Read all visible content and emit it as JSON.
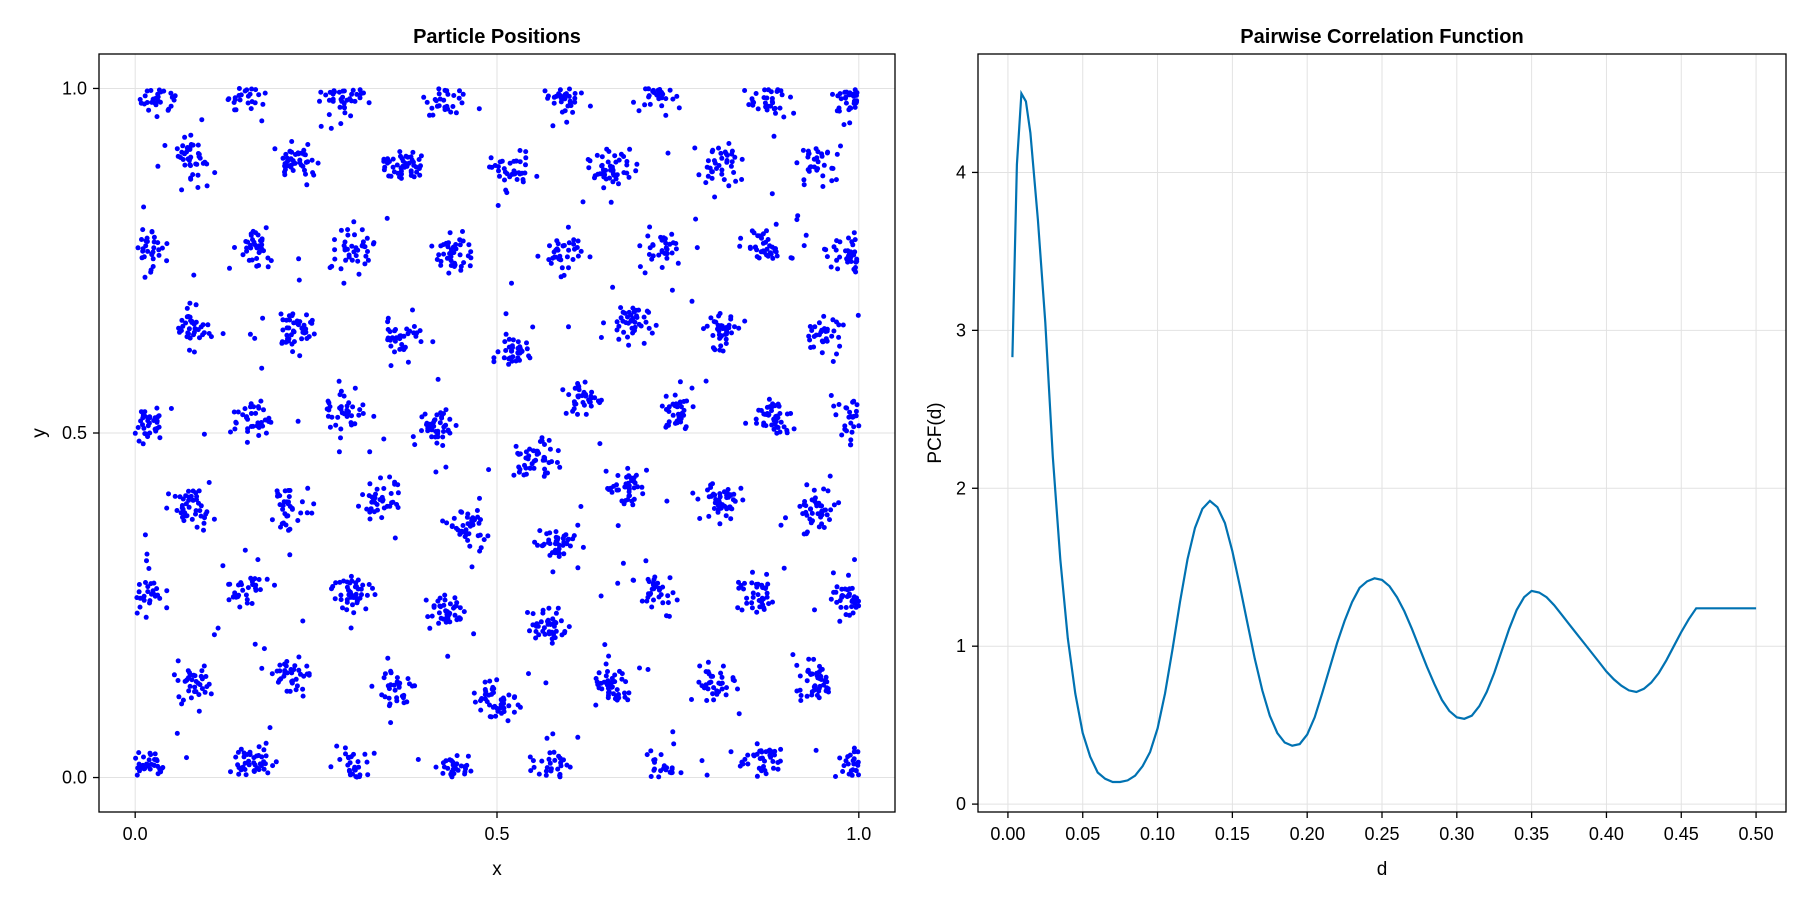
{
  "chart_data": [
    {
      "type": "scatter",
      "title": "Particle Positions",
      "xlabel": "x",
      "ylabel": "y",
      "xlim": [
        -0.05,
        1.05
      ],
      "ylim": [
        -0.05,
        1.05
      ],
      "xticks": [
        0.0,
        0.5,
        1.0
      ],
      "yticks": [
        0.0,
        0.5,
        1.0
      ],
      "xtick_labels": [
        "0.0",
        "0.5",
        "1.0"
      ],
      "ytick_labels": [
        "0.0",
        "0.5",
        "1.0"
      ],
      "grid": true,
      "legend": "none",
      "marker_color": "#0000ff",
      "cluster_centers": [
        [
          0.02,
          0.02
        ],
        [
          0.16,
          0.02
        ],
        [
          0.3,
          0.01
        ],
        [
          0.44,
          0.01
        ],
        [
          0.58,
          0.01
        ],
        [
          0.73,
          0.01
        ],
        [
          0.87,
          0.02
        ],
        [
          0.99,
          0.01
        ],
        [
          0.03,
          0.99
        ],
        [
          0.15,
          0.99
        ],
        [
          0.29,
          0.99
        ],
        [
          0.43,
          0.99
        ],
        [
          0.59,
          0.99
        ],
        [
          0.72,
          0.99
        ],
        [
          0.87,
          0.99
        ],
        [
          0.99,
          0.99
        ],
        [
          0.08,
          0.9
        ],
        [
          0.22,
          0.89
        ],
        [
          0.37,
          0.89
        ],
        [
          0.52,
          0.88
        ],
        [
          0.66,
          0.88
        ],
        [
          0.81,
          0.89
        ],
        [
          0.94,
          0.89
        ],
        [
          0.02,
          0.77
        ],
        [
          0.16,
          0.77
        ],
        [
          0.3,
          0.77
        ],
        [
          0.44,
          0.76
        ],
        [
          0.59,
          0.76
        ],
        [
          0.73,
          0.77
        ],
        [
          0.87,
          0.77
        ],
        [
          0.99,
          0.76
        ],
        [
          0.08,
          0.65
        ],
        [
          0.22,
          0.65
        ],
        [
          0.37,
          0.64
        ],
        [
          0.52,
          0.62
        ],
        [
          0.68,
          0.66
        ],
        [
          0.81,
          0.65
        ],
        [
          0.95,
          0.64
        ],
        [
          0.02,
          0.51
        ],
        [
          0.16,
          0.52
        ],
        [
          0.29,
          0.53
        ],
        [
          0.42,
          0.51
        ],
        [
          0.55,
          0.46
        ],
        [
          0.62,
          0.55
        ],
        [
          0.75,
          0.53
        ],
        [
          0.88,
          0.52
        ],
        [
          0.99,
          0.52
        ],
        [
          0.08,
          0.39
        ],
        [
          0.21,
          0.39
        ],
        [
          0.34,
          0.4
        ],
        [
          0.46,
          0.36
        ],
        [
          0.58,
          0.34
        ],
        [
          0.68,
          0.42
        ],
        [
          0.81,
          0.4
        ],
        [
          0.94,
          0.39
        ],
        [
          0.01,
          0.27
        ],
        [
          0.15,
          0.27
        ],
        [
          0.3,
          0.27
        ],
        [
          0.43,
          0.24
        ],
        [
          0.57,
          0.22
        ],
        [
          0.72,
          0.27
        ],
        [
          0.86,
          0.26
        ],
        [
          0.99,
          0.26
        ],
        [
          0.08,
          0.14
        ],
        [
          0.22,
          0.15
        ],
        [
          0.36,
          0.13
        ],
        [
          0.5,
          0.11
        ],
        [
          0.66,
          0.13
        ],
        [
          0.8,
          0.14
        ],
        [
          0.94,
          0.14
        ]
      ]
    },
    {
      "type": "line",
      "title": "Pairwise Correlation Function",
      "xlabel": "d",
      "ylabel": "PCF(d)",
      "xlim": [
        -0.02,
        0.52
      ],
      "ylim": [
        -0.05,
        4.75
      ],
      "xticks": [
        0.0,
        0.05,
        0.1,
        0.15,
        0.2,
        0.25,
        0.3,
        0.35,
        0.4,
        0.45,
        0.5
      ],
      "xtick_labels": [
        "0.00",
        "0.05",
        "0.10",
        "0.15",
        "0.20",
        "0.25",
        "0.30",
        "0.35",
        "0.40",
        "0.45",
        "0.50"
      ],
      "yticks": [
        0,
        1,
        2,
        3,
        4
      ],
      "ytick_labels": [
        "0",
        "1",
        "2",
        "3",
        "4"
      ],
      "grid": true,
      "legend": "none",
      "line_color": "#0072b2",
      "x": [
        0.003,
        0.006,
        0.009,
        0.012,
        0.015,
        0.02,
        0.025,
        0.03,
        0.035,
        0.04,
        0.045,
        0.05,
        0.055,
        0.06,
        0.065,
        0.07,
        0.075,
        0.08,
        0.085,
        0.09,
        0.095,
        0.1,
        0.105,
        0.11,
        0.115,
        0.12,
        0.125,
        0.13,
        0.135,
        0.14,
        0.145,
        0.15,
        0.155,
        0.16,
        0.165,
        0.17,
        0.175,
        0.18,
        0.185,
        0.19,
        0.195,
        0.2,
        0.205,
        0.21,
        0.215,
        0.22,
        0.225,
        0.23,
        0.235,
        0.24,
        0.245,
        0.25,
        0.255,
        0.26,
        0.265,
        0.27,
        0.275,
        0.28,
        0.285,
        0.29,
        0.295,
        0.3,
        0.305,
        0.31,
        0.315,
        0.32,
        0.325,
        0.33,
        0.335,
        0.34,
        0.345,
        0.35,
        0.355,
        0.36,
        0.365,
        0.37,
        0.375,
        0.38,
        0.385,
        0.39,
        0.395,
        0.4,
        0.405,
        0.41,
        0.415,
        0.42,
        0.425,
        0.43,
        0.435,
        0.44,
        0.445,
        0.45,
        0.455,
        0.46,
        0.465,
        0.47,
        0.475,
        0.48,
        0.485,
        0.49,
        0.495,
        0.5
      ],
      "values": [
        2.83,
        4.05,
        4.5,
        4.45,
        4.25,
        3.7,
        3.05,
        2.2,
        1.55,
        1.05,
        0.7,
        0.45,
        0.3,
        0.2,
        0.16,
        0.14,
        0.14,
        0.15,
        0.18,
        0.24,
        0.33,
        0.48,
        0.7,
        0.98,
        1.28,
        1.55,
        1.75,
        1.87,
        1.92,
        1.88,
        1.78,
        1.6,
        1.38,
        1.15,
        0.92,
        0.72,
        0.56,
        0.45,
        0.39,
        0.37,
        0.38,
        0.44,
        0.55,
        0.7,
        0.86,
        1.02,
        1.16,
        1.28,
        1.37,
        1.41,
        1.43,
        1.42,
        1.38,
        1.31,
        1.22,
        1.11,
        0.99,
        0.87,
        0.76,
        0.66,
        0.59,
        0.55,
        0.54,
        0.56,
        0.62,
        0.71,
        0.83,
        0.97,
        1.11,
        1.23,
        1.31,
        1.35,
        1.34,
        1.31,
        1.26,
        1.2,
        1.14,
        1.08,
        1.02,
        0.96,
        0.9,
        0.84,
        0.79,
        0.75,
        0.72,
        0.71,
        0.73,
        0.77,
        0.83,
        0.91,
        1.0,
        1.09,
        1.17,
        1.24,
        1.24,
        1.24,
        1.24,
        1.24,
        1.24,
        1.24,
        1.24,
        1.24
      ]
    }
  ]
}
